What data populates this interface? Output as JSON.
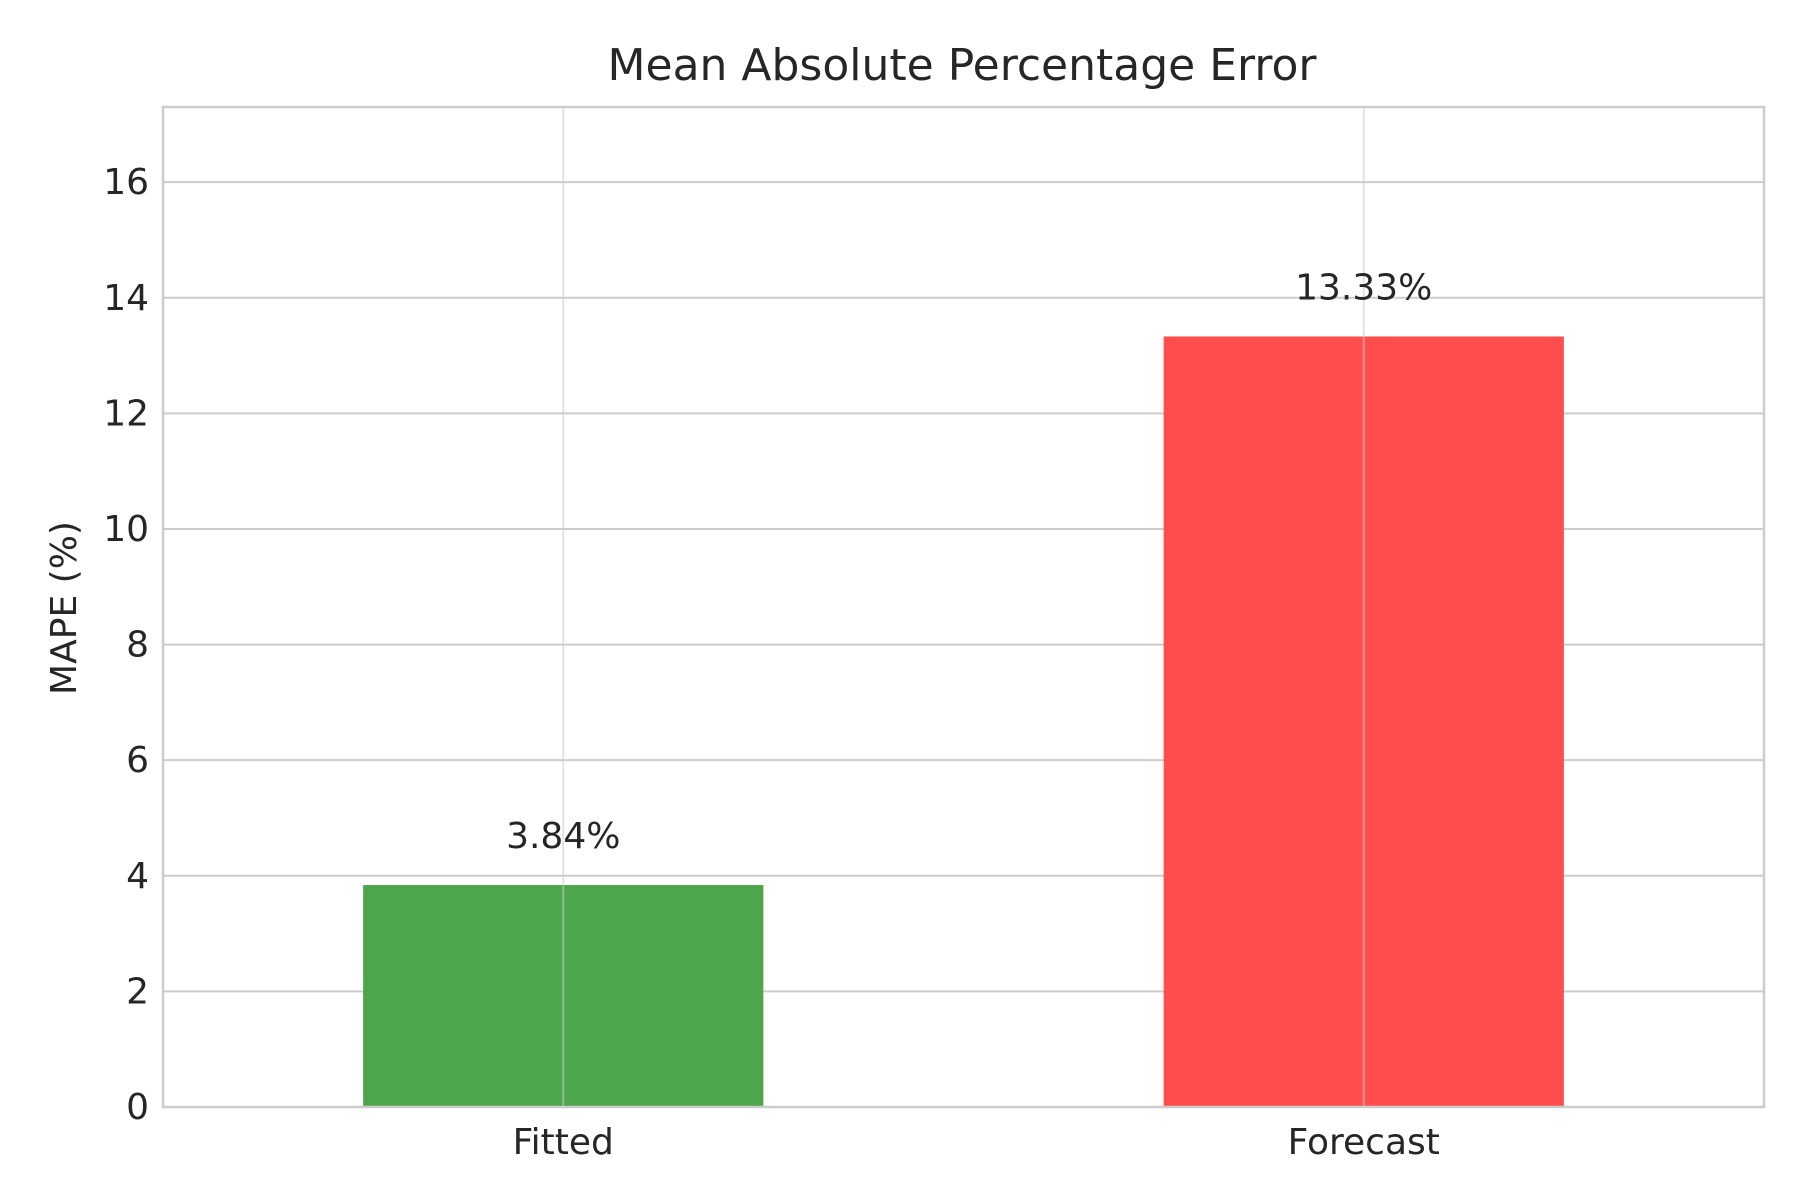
{
  "chart_data": {
    "type": "bar",
    "title": "Mean Absolute Percentage Error",
    "xlabel": "",
    "ylabel": "MAPE (%)",
    "categories": [
      "Fitted",
      "Forecast"
    ],
    "values": [
      3.84,
      13.33
    ],
    "value_labels": [
      "3.84%",
      "13.33%"
    ],
    "colors": [
      "#4ca64c",
      "#ff4d4d"
    ],
    "ylim": [
      0,
      17.3
    ],
    "yticks": [
      0,
      2,
      4,
      6,
      8,
      10,
      12,
      14,
      16
    ],
    "grid": true,
    "legend": "none"
  }
}
